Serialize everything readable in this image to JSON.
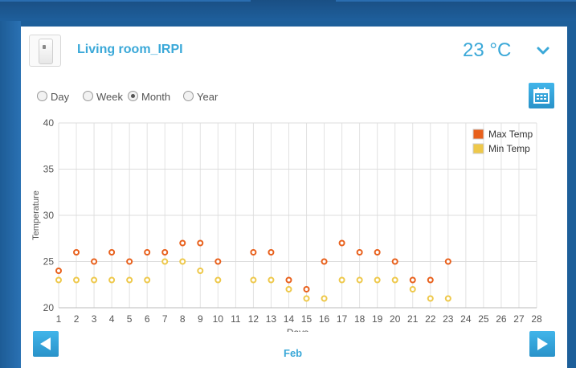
{
  "device": {
    "name": "Living room_IRPI",
    "temperature": "23 °C"
  },
  "periods": [
    {
      "label": "Day",
      "selected": false
    },
    {
      "label": "Week",
      "selected": false
    },
    {
      "label": "Month",
      "selected": true
    },
    {
      "label": "Year",
      "selected": false
    }
  ],
  "navigation": {
    "month_label": "Feb"
  },
  "colors": {
    "accent": "#3aa8d8",
    "max_temp": "#e8601c",
    "min_temp": "#eec84a"
  },
  "icons": {
    "device": "sensor-device-icon",
    "calendar": "calendar-icon",
    "dropdown": "chevron-down-icon",
    "prev": "arrow-left-icon",
    "next": "arrow-right-icon"
  },
  "chart_data": {
    "type": "scatter",
    "xlabel": "Days",
    "ylabel": "Temperature",
    "xlim": [
      1,
      28
    ],
    "ylim": [
      20,
      40
    ],
    "x_ticks": [
      1,
      2,
      3,
      4,
      5,
      6,
      7,
      8,
      9,
      10,
      11,
      12,
      13,
      14,
      15,
      16,
      17,
      18,
      19,
      20,
      21,
      22,
      23,
      24,
      25,
      26,
      27,
      28
    ],
    "y_ticks": [
      20,
      25,
      30,
      35,
      40
    ],
    "grid": true,
    "legend_position": "top-right",
    "series": [
      {
        "name": "Max Temp",
        "color": "#e8601c",
        "points": [
          [
            1,
            24
          ],
          [
            2,
            26
          ],
          [
            3,
            25
          ],
          [
            4,
            26
          ],
          [
            5,
            25
          ],
          [
            6,
            26
          ],
          [
            7,
            26
          ],
          [
            8,
            27
          ],
          [
            9,
            27
          ],
          [
            10,
            25
          ],
          [
            12,
            26
          ],
          [
            13,
            26
          ],
          [
            14,
            23
          ],
          [
            15,
            22
          ],
          [
            16,
            25
          ],
          [
            17,
            27
          ],
          [
            18,
            26
          ],
          [
            19,
            26
          ],
          [
            20,
            25
          ],
          [
            21,
            23
          ],
          [
            22,
            23
          ],
          [
            23,
            25
          ]
        ]
      },
      {
        "name": "Min Temp",
        "color": "#eec84a",
        "points": [
          [
            1,
            23
          ],
          [
            2,
            23
          ],
          [
            3,
            23
          ],
          [
            4,
            23
          ],
          [
            5,
            23
          ],
          [
            6,
            23
          ],
          [
            7,
            25
          ],
          [
            8,
            25
          ],
          [
            9,
            24
          ],
          [
            10,
            23
          ],
          [
            12,
            23
          ],
          [
            13,
            23
          ],
          [
            14,
            22
          ],
          [
            15,
            21
          ],
          [
            16,
            21
          ],
          [
            17,
            23
          ],
          [
            18,
            23
          ],
          [
            19,
            23
          ],
          [
            20,
            23
          ],
          [
            21,
            22
          ],
          [
            22,
            21
          ],
          [
            23,
            21
          ]
        ]
      }
    ]
  }
}
